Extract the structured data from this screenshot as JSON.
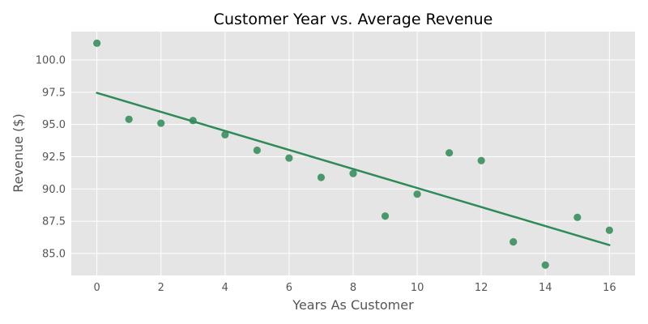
{
  "chart_data": {
    "type": "scatter",
    "title": "Customer Year vs. Average Revenue",
    "xlabel": "Years As Customer",
    "ylabel": "Revenue ($)",
    "xlim": [
      -0.8,
      16.8
    ],
    "ylim": [
      83.3,
      102.2
    ],
    "xticks": [
      "0",
      "2",
      "4",
      "6",
      "8",
      "10",
      "12",
      "14",
      "16"
    ],
    "yticks": [
      "85.0",
      "87.5",
      "90.0",
      "92.5",
      "95.0",
      "97.5",
      "100.0"
    ],
    "grid": true,
    "legend": "none",
    "point_color": "#2e8b57",
    "line_color": "#2e8b57",
    "background_color": "#e5e5e5",
    "points": [
      {
        "x": 0,
        "y": 101.3
      },
      {
        "x": 1,
        "y": 95.4
      },
      {
        "x": 2,
        "y": 95.1
      },
      {
        "x": 3,
        "y": 95.3
      },
      {
        "x": 4,
        "y": 94.2
      },
      {
        "x": 5,
        "y": 93.0
      },
      {
        "x": 6,
        "y": 92.4
      },
      {
        "x": 7,
        "y": 90.9
      },
      {
        "x": 8,
        "y": 91.2
      },
      {
        "x": 9,
        "y": 87.9
      },
      {
        "x": 10,
        "y": 89.6
      },
      {
        "x": 11,
        "y": 92.8
      },
      {
        "x": 12,
        "y": 92.2
      },
      {
        "x": 13,
        "y": 85.9
      },
      {
        "x": 14,
        "y": 84.1
      },
      {
        "x": 15,
        "y": 87.8
      },
      {
        "x": 16,
        "y": 86.8
      }
    ],
    "regression_line": [
      {
        "x": 0,
        "y": 97.45
      },
      {
        "x": 16,
        "y": 85.65
      }
    ]
  }
}
